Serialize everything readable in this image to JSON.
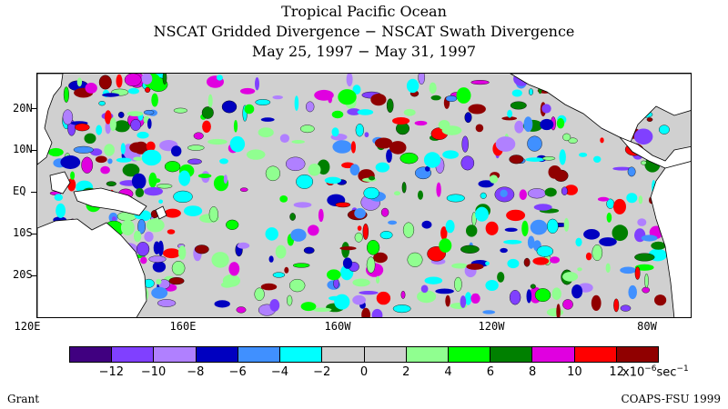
{
  "title": {
    "line1": "Tropical Pacific Ocean",
    "line2": "NSCAT Gridded Divergence − NSCAT Swath Divergence",
    "line3": "May 25, 1997 − May 31, 1997"
  },
  "map": {
    "lat_labels": [
      "20N",
      "10N",
      "EQ",
      "10S",
      "20S"
    ],
    "lon_labels": [
      "120E",
      "160E",
      "160W",
      "120W",
      "80W"
    ]
  },
  "colorbar": {
    "colors": [
      "#400080",
      "#8040ff",
      "#b080ff",
      "#0000c0",
      "#4090ff",
      "#00ffff",
      "#d0d0d0",
      "#d0d0d0",
      "#90ff90",
      "#00ff00",
      "#008000",
      "#e000e0",
      "#ff0000",
      "#900000"
    ],
    "labels": [
      "−12",
      "−10",
      "−8",
      "−6",
      "−4",
      "−2",
      "0",
      "2",
      "4",
      "6",
      "8",
      "10",
      "12"
    ],
    "units_base": "x10",
    "units_exp": "−6",
    "units_tail": "sec",
    "units_tail_exp": "−1"
  },
  "footer": {
    "left": "Grant",
    "right": "COAPS-FSU 1999"
  }
}
